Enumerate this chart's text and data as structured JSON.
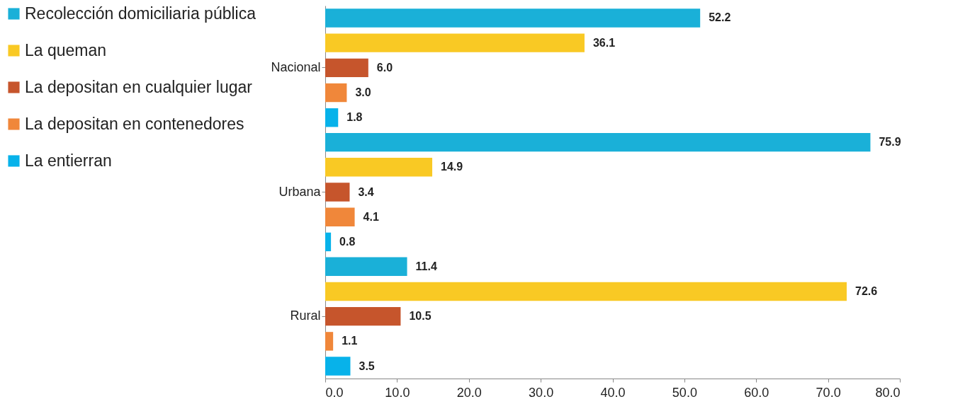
{
  "chart_data": {
    "type": "bar",
    "orientation": "horizontal",
    "categories": [
      "Nacional",
      "Urbana",
      "Rural"
    ],
    "series": [
      {
        "name": "Recolección domiciliaria pública",
        "color": "#1ab0d8",
        "values": [
          52.2,
          75.9,
          11.4
        ],
        "value_labels": [
          "52.2",
          "75.9",
          "11.4"
        ]
      },
      {
        "name": "La queman",
        "color": "#f9c924",
        "values": [
          36.1,
          14.9,
          72.6
        ],
        "value_labels": [
          "36.1",
          "14.9",
          "72.6"
        ]
      },
      {
        "name": "La depositan en cualquier lugar",
        "color": "#c6552c",
        "values": [
          6.0,
          3.4,
          10.5
        ],
        "value_labels": [
          "6.0",
          "3.4",
          "10.5"
        ]
      },
      {
        "name": "La depositan en contenedores",
        "color": "#f0873a",
        "values": [
          3.0,
          4.1,
          1.1
        ],
        "value_labels": [
          "3.0",
          "4.1",
          "1.1"
        ]
      },
      {
        "name": "La entierran",
        "color": "#07b2ea",
        "values": [
          1.8,
          0.8,
          3.5
        ],
        "value_labels": [
          "1.8",
          "0.8",
          "3.5"
        ]
      }
    ],
    "xlim": [
      0,
      80
    ],
    "xticks": [
      {
        "value": 0,
        "label": "0.0"
      },
      {
        "value": 10,
        "label": "10.0"
      },
      {
        "value": 20,
        "label": "20.0"
      },
      {
        "value": 30,
        "label": "30.0"
      },
      {
        "value": 40,
        "label": "40.0"
      },
      {
        "value": 50,
        "label": "50.0"
      },
      {
        "value": 60,
        "label": "60.0"
      },
      {
        "value": 70,
        "label": "70.0"
      },
      {
        "value": 80,
        "label": "80.0"
      }
    ],
    "grid": false,
    "legend": "left"
  }
}
